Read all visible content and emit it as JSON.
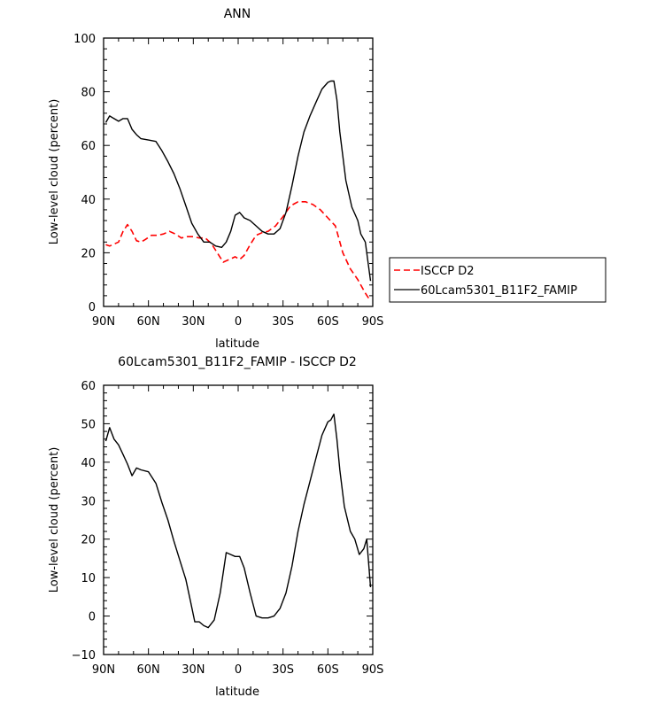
{
  "chart_data": [
    {
      "type": "line",
      "title": "ANN",
      "xlabel": "latitude",
      "ylabel": "Low-level cloud (percent)",
      "xlim": [
        90,
        -90
      ],
      "ylim": [
        0,
        100
      ],
      "x_ticks": [
        90,
        60,
        30,
        0,
        -30,
        -60,
        -90
      ],
      "x_tick_labels": [
        "90N",
        "60N",
        "30N",
        "0",
        "30S",
        "60S",
        "90S"
      ],
      "y_ticks": [
        0,
        20,
        40,
        60,
        80,
        100
      ],
      "y_tick_labels": [
        "0",
        "20",
        "40",
        "60",
        "80",
        "100"
      ],
      "legend_position": "right",
      "series": [
        {
          "name": "ISCCP D2",
          "color": "#ff0000",
          "dash": "dashed",
          "x": [
            88.5,
            86,
            82,
            80,
            77,
            74,
            71,
            68,
            65,
            62,
            58,
            54,
            50,
            46,
            42,
            38,
            34,
            30,
            26,
            22,
            18,
            14,
            10,
            6,
            2,
            -1,
            -4,
            -8,
            -12,
            -16,
            -20,
            -25,
            -30,
            -35,
            -40,
            -45,
            -50,
            -55,
            -60,
            -65,
            -70,
            -75,
            -80,
            -85,
            -88.5
          ],
          "y": [
            23,
            22.5,
            23.5,
            24,
            28,
            30.5,
            28,
            24.5,
            24,
            25,
            26.5,
            26.5,
            27,
            28,
            27,
            25.5,
            26,
            26,
            25.5,
            25.5,
            23.5,
            20,
            16.5,
            17.5,
            18.5,
            17.5,
            19,
            23,
            26.5,
            27.5,
            28,
            30,
            33.5,
            37.5,
            39,
            39,
            38,
            36,
            33,
            30,
            20,
            14,
            10,
            5,
            2
          ]
        },
        {
          "name": "60Lcam5301_B11F2_FAMIP",
          "color": "#000000",
          "dash": "solid",
          "x": [
            88.5,
            86,
            83,
            80,
            77,
            74,
            71,
            68,
            65,
            60,
            55,
            51,
            47,
            43,
            39,
            35,
            31,
            27,
            23,
            19,
            15,
            11,
            8,
            5,
            2,
            -1,
            -4,
            -8,
            -12,
            -16,
            -20,
            -24,
            -28,
            -32,
            -36,
            -40,
            -44,
            -48,
            -52,
            -56,
            -60,
            -62,
            -64,
            -66,
            -68,
            -72,
            -76,
            -80,
            -82,
            -85,
            -88.5
          ],
          "y": [
            68.5,
            71,
            70,
            69,
            70,
            70,
            66,
            64,
            62.5,
            62,
            61.5,
            58,
            54,
            49.5,
            44,
            37.5,
            31,
            27,
            24,
            24,
            22.5,
            22,
            24,
            28,
            34,
            35,
            33,
            32,
            30,
            28,
            27,
            27,
            29,
            35,
            45,
            56,
            65,
            71,
            76,
            81,
            83.5,
            84,
            84,
            77,
            65,
            47,
            37,
            32,
            27,
            24,
            9.5
          ]
        }
      ]
    },
    {
      "type": "line",
      "title": "60Lcam5301_B11F2_FAMIP - ISCCP D2",
      "xlabel": "latitude",
      "ylabel": "Low-level cloud (percent)",
      "xlim": [
        90,
        -90
      ],
      "ylim": [
        -10,
        60
      ],
      "x_ticks": [
        90,
        60,
        30,
        0,
        -30,
        -60,
        -90
      ],
      "x_tick_labels": [
        "90N",
        "60N",
        "30N",
        "0",
        "30S",
        "60S",
        "90S"
      ],
      "y_ticks": [
        -10,
        0,
        10,
        20,
        30,
        40,
        50,
        60
      ],
      "y_tick_labels": [
        "−10",
        "0",
        "10",
        "20",
        "30",
        "40",
        "50",
        "60"
      ],
      "series": [
        {
          "color": "#000000",
          "dash": "solid",
          "x": [
            88.5,
            86,
            83,
            80,
            77,
            74,
            71,
            68,
            65,
            60,
            55,
            51,
            47,
            43,
            39,
            35,
            32,
            29,
            26,
            23,
            20,
            16,
            12,
            8,
            5,
            2,
            -1,
            -4,
            -8,
            -12,
            -16,
            -20,
            -24,
            -28,
            -32,
            -36,
            -40,
            -44,
            -48,
            -52,
            -56,
            -60,
            -62,
            -64,
            -66,
            -68,
            -71,
            -75,
            -78,
            -81,
            -84,
            -86,
            -88.5
          ],
          "y": [
            45.5,
            49,
            46,
            44.5,
            42,
            39.5,
            36.5,
            38.5,
            38,
            37.5,
            34.5,
            29.5,
            25,
            19.5,
            14.5,
            9.5,
            4,
            -1.5,
            -1.5,
            -2.5,
            -3,
            -1,
            6,
            16.5,
            16,
            15.5,
            15.5,
            12.5,
            6,
            0,
            -0.5,
            -0.5,
            0,
            2,
            6,
            13,
            22,
            29,
            35,
            41,
            47,
            50.5,
            51,
            52.5,
            46,
            38,
            28.5,
            22,
            20,
            16,
            17.5,
            20,
            7.5
          ]
        }
      ]
    }
  ]
}
